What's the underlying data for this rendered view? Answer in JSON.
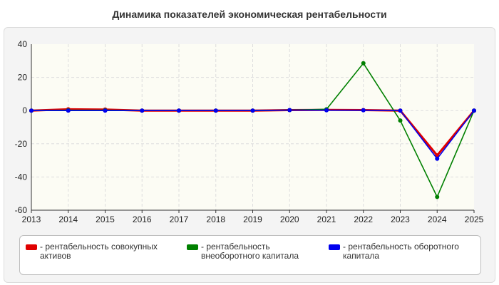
{
  "chart_data": {
    "type": "line",
    "title": "Динамика показателей экономическая рентабельности",
    "xlabel": "",
    "ylabel": "",
    "x": [
      2013,
      2014,
      2015,
      2016,
      2017,
      2018,
      2019,
      2020,
      2021,
      2022,
      2023,
      2024,
      2025
    ],
    "xlim": [
      2013,
      2025
    ],
    "ylim": [
      -60,
      40
    ],
    "yticks": [
      40,
      20,
      0,
      -20,
      -40,
      -60
    ],
    "grid": true,
    "legend_position": "bottom",
    "series": [
      {
        "name": "- рентабельность совокупных активов",
        "color": "#e00000",
        "values": [
          0,
          0.8,
          0.6,
          0,
          0,
          0,
          0,
          0.3,
          0.4,
          0.3,
          0,
          -27,
          0
        ]
      },
      {
        "name": "- рентабельность внеоборотного капитала",
        "color": "#008000",
        "values": [
          0,
          0.2,
          0.2,
          0,
          0,
          0,
          0,
          0.3,
          0.8,
          28.5,
          -6,
          -52,
          0
        ]
      },
      {
        "name": "- рентабельность оборотного капитала",
        "color": "#0000ee",
        "values": [
          0,
          0,
          0,
          0,
          0,
          0,
          0,
          0.3,
          0.2,
          0.2,
          0,
          -29,
          0
        ]
      }
    ]
  }
}
